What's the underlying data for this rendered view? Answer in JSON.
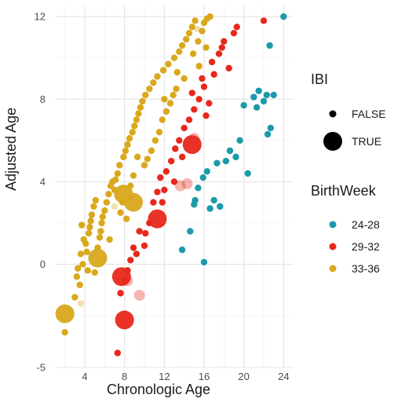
{
  "chart_data": {
    "type": "scatter",
    "xlabel": "Chronologic Age",
    "ylabel": "Adjusted Age",
    "xlim": [
      1,
      25
    ],
    "ylim": [
      -5,
      12.5
    ],
    "x_ticks": [
      4,
      8,
      12,
      16,
      20,
      24
    ],
    "y_ticks": [
      -5,
      0,
      4,
      8,
      12
    ],
    "grid": true,
    "legends": {
      "size": {
        "title": "IBI",
        "entries": [
          {
            "label": "FALSE",
            "key": "false"
          },
          {
            "label": "TRUE",
            "key": "true"
          }
        ]
      },
      "color": {
        "title": "BirthWeek",
        "entries": [
          {
            "label": "24-28",
            "color": "#1b9aaa"
          },
          {
            "label": "29-32",
            "color": "#e8281b"
          },
          {
            "label": "33-36",
            "color": "#d9a81c"
          }
        ]
      }
    },
    "colors": {
      "24-28": "#1b9aaa",
      "29-32": "#e8281b",
      "33-36": "#d9a81c"
    },
    "series": [
      {
        "group": "33-36",
        "ibi": false,
        "points": [
          [
            2.0,
            -3.3
          ],
          [
            3.0,
            -1.6
          ],
          [
            3.2,
            -0.6
          ],
          [
            3.5,
            -1.0
          ],
          [
            3.3,
            -0.2
          ],
          [
            3.8,
            0.0
          ],
          [
            3.6,
            0.5
          ],
          [
            3.9,
            1.2
          ],
          [
            4.1,
            1.0
          ],
          [
            4.2,
            0.6
          ],
          [
            4.4,
            1.5
          ],
          [
            4.5,
            1.8
          ],
          [
            4.6,
            2.1
          ],
          [
            4.7,
            2.4
          ],
          [
            4.9,
            2.8
          ],
          [
            5.1,
            3.1
          ],
          [
            5.3,
            0.8
          ],
          [
            5.5,
            1.3
          ],
          [
            5.6,
            1.6
          ],
          [
            5.7,
            2.0
          ],
          [
            5.8,
            2.3
          ],
          [
            6.0,
            2.6
          ],
          [
            6.2,
            3.0
          ],
          [
            6.4,
            3.4
          ],
          [
            6.6,
            3.8
          ],
          [
            6.8,
            4.0
          ],
          [
            7.0,
            3.6
          ],
          [
            7.1,
            4.1
          ],
          [
            7.3,
            4.4
          ],
          [
            7.5,
            4.8
          ],
          [
            7.6,
            2.5
          ],
          [
            7.8,
            3.0
          ],
          [
            7.9,
            5.2
          ],
          [
            8.1,
            5.5
          ],
          [
            8.3,
            5.8
          ],
          [
            8.5,
            6.1
          ],
          [
            8.2,
            2.2
          ],
          [
            8.6,
            3.8
          ],
          [
            8.8,
            6.4
          ],
          [
            9.0,
            6.7
          ],
          [
            9.2,
            7.0
          ],
          [
            9.4,
            7.3
          ],
          [
            9.6,
            7.6
          ],
          [
            9.8,
            7.9
          ],
          [
            10.0,
            4.8
          ],
          [
            10.1,
            8.2
          ],
          [
            10.3,
            5.1
          ],
          [
            10.5,
            8.5
          ],
          [
            10.7,
            5.5
          ],
          [
            10.9,
            8.8
          ],
          [
            11.1,
            6.0
          ],
          [
            11.3,
            9.1
          ],
          [
            11.5,
            6.4
          ],
          [
            11.8,
            7.0
          ],
          [
            11.9,
            9.4
          ],
          [
            12.2,
            7.4
          ],
          [
            12.4,
            9.7
          ],
          [
            12.6,
            7.8
          ],
          [
            12.9,
            8.2
          ],
          [
            13.0,
            10.0
          ],
          [
            13.2,
            8.5
          ],
          [
            13.5,
            10.3
          ],
          [
            13.8,
            10.6
          ],
          [
            14.0,
            9.0
          ],
          [
            14.2,
            10.9
          ],
          [
            14.5,
            11.2
          ],
          [
            14.8,
            11.5
          ],
          [
            15.1,
            11.8
          ],
          [
            15.4,
            10.8
          ],
          [
            15.8,
            11.3
          ],
          [
            16.0,
            11.7
          ],
          [
            16.3,
            11.9
          ],
          [
            16.6,
            12.0
          ],
          [
            16.2,
            10.5
          ],
          [
            13.3,
            9.3
          ],
          [
            12.0,
            8.0
          ],
          [
            9.3,
            5.2
          ],
          [
            8.9,
            4.3
          ],
          [
            6.5,
            1.2
          ],
          [
            5.0,
            -0.4
          ],
          [
            4.3,
            -0.3
          ],
          [
            3.7,
            1.9
          ],
          [
            15.5,
            9.6
          ],
          [
            14.9,
            10.2
          ]
        ]
      },
      {
        "group": "33-36",
        "ibi": true,
        "points": [
          [
            2.0,
            -2.4
          ],
          [
            5.3,
            0.3
          ],
          [
            7.9,
            3.4
          ],
          [
            8.9,
            3.0
          ]
        ]
      },
      {
        "group": "29-32",
        "ibi": false,
        "points": [
          [
            7.3,
            -4.3
          ],
          [
            7.6,
            -1.4
          ],
          [
            8.0,
            -0.8
          ],
          [
            8.3,
            -0.3
          ],
          [
            8.6,
            0.2
          ],
          [
            8.9,
            0.8
          ],
          [
            9.2,
            0.5
          ],
          [
            9.5,
            1.6
          ],
          [
            10.1,
            1.5
          ],
          [
            10.5,
            2.0
          ],
          [
            10.9,
            3.0
          ],
          [
            11.3,
            3.5
          ],
          [
            11.8,
            3.0
          ],
          [
            12.2,
            4.5
          ],
          [
            12.7,
            5.0
          ],
          [
            13.1,
            5.6
          ],
          [
            13.5,
            6.0
          ],
          [
            13.0,
            4.0
          ],
          [
            14.0,
            6.6
          ],
          [
            14.5,
            7.0
          ],
          [
            15.0,
            7.5
          ],
          [
            15.5,
            8.0
          ],
          [
            16.0,
            8.6
          ],
          [
            16.5,
            7.8
          ],
          [
            17.0,
            9.2
          ],
          [
            17.5,
            10.2
          ],
          [
            18.0,
            10.8
          ],
          [
            18.5,
            9.5
          ],
          [
            19.0,
            11.2
          ],
          [
            19.3,
            11.5
          ],
          [
            17.8,
            10.5
          ],
          [
            16.8,
            9.8
          ],
          [
            14.8,
            8.3
          ],
          [
            15.8,
            9.0
          ],
          [
            16.2,
            7.2
          ],
          [
            13.8,
            5.2
          ],
          [
            12.0,
            3.6
          ],
          [
            10.0,
            0.9
          ],
          [
            11.6,
            4.2
          ],
          [
            22.0,
            11.8
          ]
        ]
      },
      {
        "group": "29-32",
        "ibi": true,
        "points": [
          [
            7.7,
            -0.6
          ],
          [
            8.0,
            -2.7
          ],
          [
            11.3,
            2.2
          ],
          [
            14.8,
            5.8
          ]
        ]
      },
      {
        "group": "24-28",
        "ibi": false,
        "points": [
          [
            13.8,
            0.7
          ],
          [
            14.6,
            1.6
          ],
          [
            15.0,
            2.9
          ],
          [
            15.4,
            3.7
          ],
          [
            15.9,
            4.2
          ],
          [
            16.3,
            4.5
          ],
          [
            16.6,
            2.7
          ],
          [
            17.0,
            3.1
          ],
          [
            17.3,
            4.9
          ],
          [
            17.6,
            2.8
          ],
          [
            18.2,
            5.0
          ],
          [
            18.6,
            5.5
          ],
          [
            19.2,
            5.2
          ],
          [
            19.6,
            6.0
          ],
          [
            20.0,
            7.7
          ],
          [
            20.4,
            4.4
          ],
          [
            21.0,
            8.1
          ],
          [
            21.5,
            8.4
          ],
          [
            22.0,
            7.9
          ],
          [
            22.3,
            8.2
          ],
          [
            22.6,
            10.6
          ],
          [
            23.0,
            8.2
          ],
          [
            22.4,
            6.3
          ],
          [
            22.7,
            6.6
          ],
          [
            15.1,
            3.1
          ],
          [
            16.0,
            0.1
          ],
          [
            21.3,
            7.6
          ],
          [
            24.0,
            12.0
          ]
        ]
      }
    ],
    "faded_points": [
      {
        "group": "24-28",
        "points": [
          [
            13.8,
            0.7
          ],
          [
            16.0,
            0.1
          ]
        ]
      },
      {
        "group": "29-32",
        "points": [
          [
            8.3,
            -0.8
          ],
          [
            13.6,
            3.8
          ],
          [
            14.3,
            3.9
          ],
          [
            15.0,
            6.1
          ],
          [
            9.5,
            -1.5
          ]
        ]
      },
      {
        "group": "33-36",
        "points": [
          [
            3.6,
            -1.9
          ],
          [
            7.0,
            2.8
          ],
          [
            15.3,
            11.4
          ]
        ]
      }
    ]
  }
}
